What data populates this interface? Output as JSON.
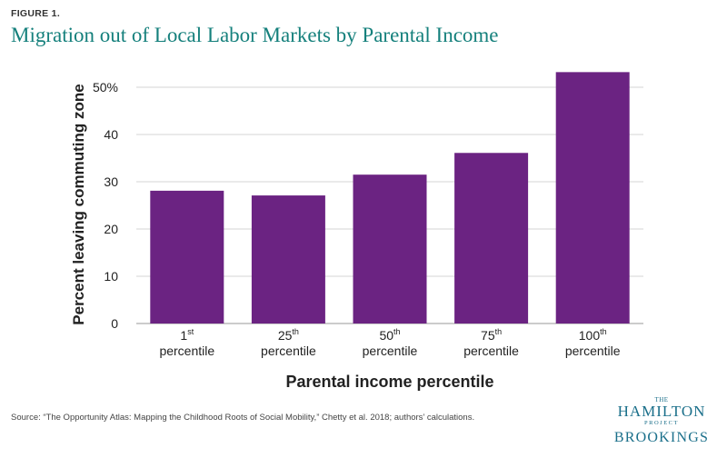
{
  "header": {
    "figure_label": "FIGURE 1.",
    "title": "Migration out of Local Labor Markets by Parental Income"
  },
  "footer": {
    "source": "Source: “The Opportunity Atlas: Mapping the Childhood Roots of Social Mobility,” Chetty et al. 2018; authors’ calculations."
  },
  "logo": {
    "the": "THE",
    "hamilton": "HAMILTON",
    "project": "PROJECT",
    "brookings": "BROOKINGS"
  },
  "colors": {
    "bar": "#6b2382",
    "title": "#15807c",
    "logo": "#1a6f8a"
  },
  "chart_data": {
    "type": "bar",
    "categories": [
      {
        "num": "1",
        "sup": "st",
        "line2": "percentile"
      },
      {
        "num": "25",
        "sup": "th",
        "line2": "percentile"
      },
      {
        "num": "50",
        "sup": "th",
        "line2": "percentile"
      },
      {
        "num": "75",
        "sup": "th",
        "line2": "percentile"
      },
      {
        "num": "100",
        "sup": "th",
        "line2": "percentile"
      }
    ],
    "values": [
      28.1,
      27.1,
      31.5,
      36.1,
      53.2
    ],
    "xlabel": "Parental income percentile",
    "ylabel": "Percent leaving commuting zone",
    "ylim": [
      0,
      55
    ],
    "yticks": [
      0,
      10,
      20,
      30,
      40,
      50
    ],
    "ytick_labels": [
      "0",
      "10",
      "20",
      "30",
      "40",
      "50%"
    ],
    "grid": true,
    "legend": "none"
  }
}
